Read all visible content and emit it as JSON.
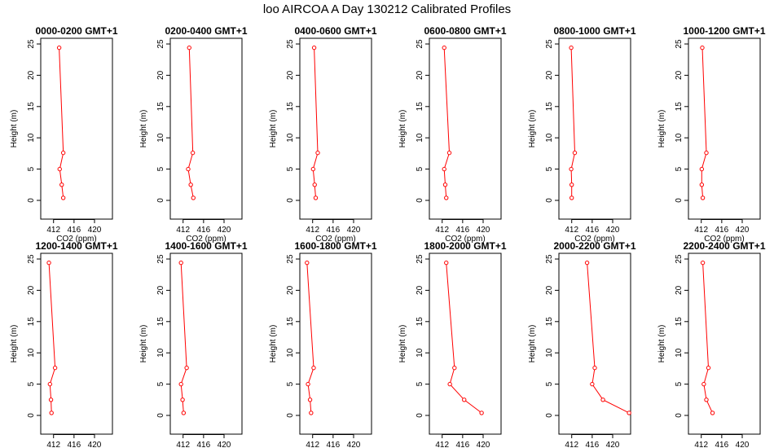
{
  "title": "loo AIRCOA A  Day 130212  Calibrated Profiles",
  "colors": {
    "series": "#ff0000",
    "axis": "#000000",
    "background": "#ffffff"
  },
  "chart_data": {
    "type": "line",
    "layout": "2 rows x 6 panels",
    "xlabel": "CO2 (ppm)",
    "ylabel": "Height (m)",
    "xlim": [
      409.5,
      423.5
    ],
    "ylim": [
      0,
      25
    ],
    "xticks": [
      412,
      416,
      420
    ],
    "xtick_labels": [
      "412",
      "416",
      "420"
    ],
    "yticks": [
      0,
      5,
      10,
      15,
      20,
      25
    ],
    "ytick_labels": [
      "0",
      "5",
      "10",
      "15",
      "20",
      "25"
    ],
    "grid": false,
    "heights": [
      24.4,
      7.6,
      5.0,
      2.5,
      0.4
    ],
    "panels": [
      {
        "title": "0000-0200 GMT+1",
        "co2": [
          413.1,
          413.9,
          413.2,
          413.6,
          413.9
        ]
      },
      {
        "title": "0200-0400 GMT+1",
        "co2": [
          413.2,
          413.9,
          413.0,
          413.5,
          414.0
        ]
      },
      {
        "title": "0400-0600 GMT+1",
        "co2": [
          412.3,
          413.0,
          412.1,
          412.4,
          412.6
        ]
      },
      {
        "title": "0600-0800 GMT+1",
        "co2": [
          412.4,
          413.4,
          412.4,
          412.6,
          412.8
        ]
      },
      {
        "title": "0800-1000 GMT+1",
        "co2": [
          411.9,
          412.6,
          411.9,
          412.0,
          412.0
        ]
      },
      {
        "title": "1000-1200 GMT+1",
        "co2": [
          412.2,
          413.0,
          412.1,
          412.1,
          412.3
        ]
      },
      {
        "title": "1200-1400 GMT+1",
        "co2": [
          411.1,
          412.3,
          411.3,
          411.5,
          411.6
        ]
      },
      {
        "title": "1400-1600 GMT+1",
        "co2": [
          411.6,
          412.7,
          411.6,
          411.9,
          412.1
        ]
      },
      {
        "title": "1600-1800 GMT+1",
        "co2": [
          410.9,
          412.2,
          411.1,
          411.5,
          411.7
        ]
      },
      {
        "title": "1800-2000 GMT+1",
        "co2": [
          412.8,
          414.4,
          413.5,
          416.3,
          419.7
        ]
      },
      {
        "title": "2000-2200 GMT+1",
        "co2": [
          415.0,
          416.5,
          416.0,
          418.1,
          423.2
        ]
      },
      {
        "title": "2200-2400 GMT+1",
        "co2": [
          412.3,
          413.4,
          412.5,
          413.0,
          414.2
        ]
      }
    ]
  }
}
